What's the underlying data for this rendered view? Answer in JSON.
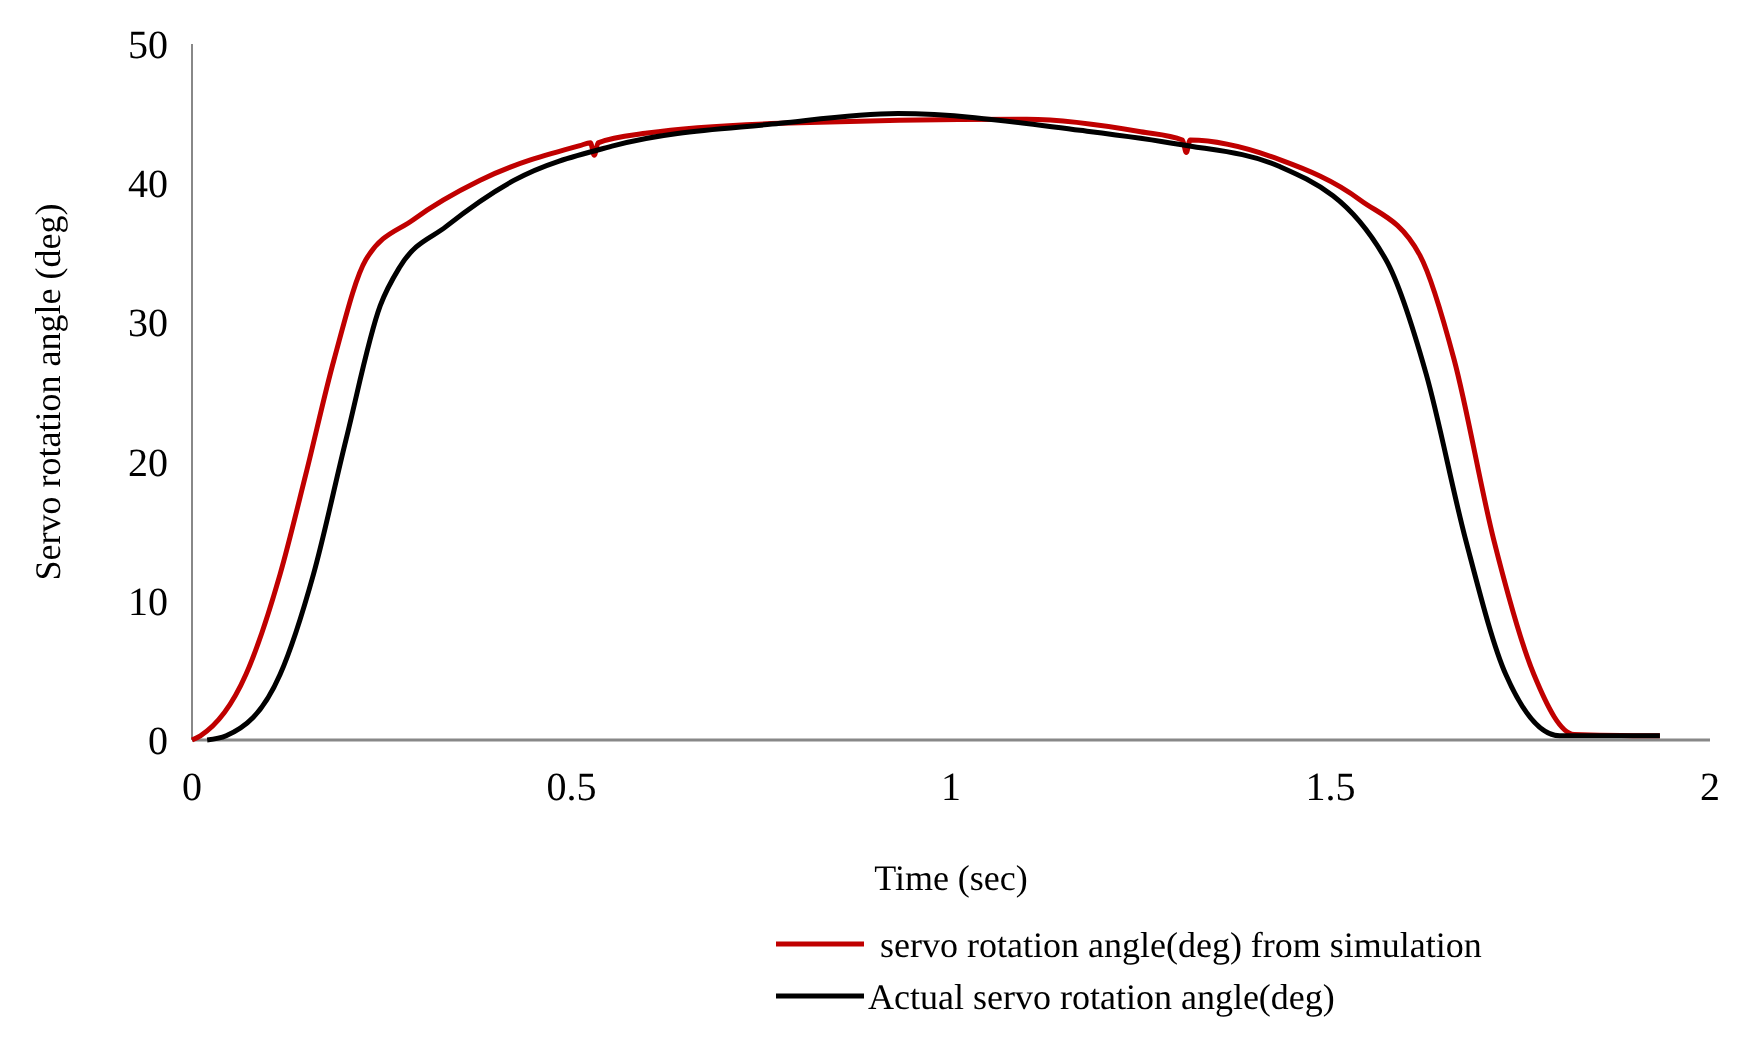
{
  "chart_data": {
    "type": "line",
    "xlabel": "Time (sec)",
    "ylabel": "Servo rotation angle (deg)",
    "xlim": [
      0,
      2
    ],
    "ylim": [
      0,
      50
    ],
    "xticks": [
      0,
      0.5,
      1,
      1.5,
      2
    ],
    "yticks": [
      0,
      10,
      20,
      30,
      40,
      50
    ],
    "grid": false,
    "legend": "bottom",
    "marker": "none",
    "line_style": "solid",
    "series": [
      {
        "name": "servo rotation angle(deg) from simulation",
        "color": "#c00000",
        "x": [
          0,
          0.011,
          0.071,
          0.116,
          0.15,
          0.187,
          0.229,
          0.292,
          0.379,
          0.511,
          0.525,
          0.53,
          0.535,
          0.6,
          0.775,
          1.1,
          1.25,
          1.305,
          1.31,
          1.315,
          1.433,
          1.539,
          1.618,
          1.663,
          1.715,
          1.768,
          1.821,
          1.934
        ],
        "values": [
          0,
          0.3,
          4.7,
          11.9,
          19.1,
          27.3,
          34.5,
          37.4,
          40.2,
          42.7,
          42.9,
          42,
          42.9,
          43.6,
          44.3,
          44.6,
          43.7,
          43.1,
          42.2,
          43.1,
          41.7,
          38.8,
          34.8,
          27.3,
          14.4,
          4.7,
          0.4,
          0.3
        ]
      },
      {
        "name": "Actual servo rotation angle(deg)",
        "color": "#000000",
        "x": [
          0.02,
          0.045,
          0.116,
          0.16,
          0.203,
          0.248,
          0.274,
          0.335,
          0.424,
          0.556,
          0.775,
          0.93,
          1.17,
          1.3,
          1.433,
          1.573,
          1.626,
          1.678,
          1.731,
          1.802,
          1.934
        ],
        "values": [
          0,
          0.3,
          4.7,
          11.9,
          21.6,
          31.2,
          34,
          36.9,
          40.2,
          42.7,
          44.3,
          45,
          43.8,
          42.8,
          41.2,
          34.5,
          26.3,
          14.4,
          4.7,
          0.3,
          0.3
        ]
      }
    ]
  }
}
